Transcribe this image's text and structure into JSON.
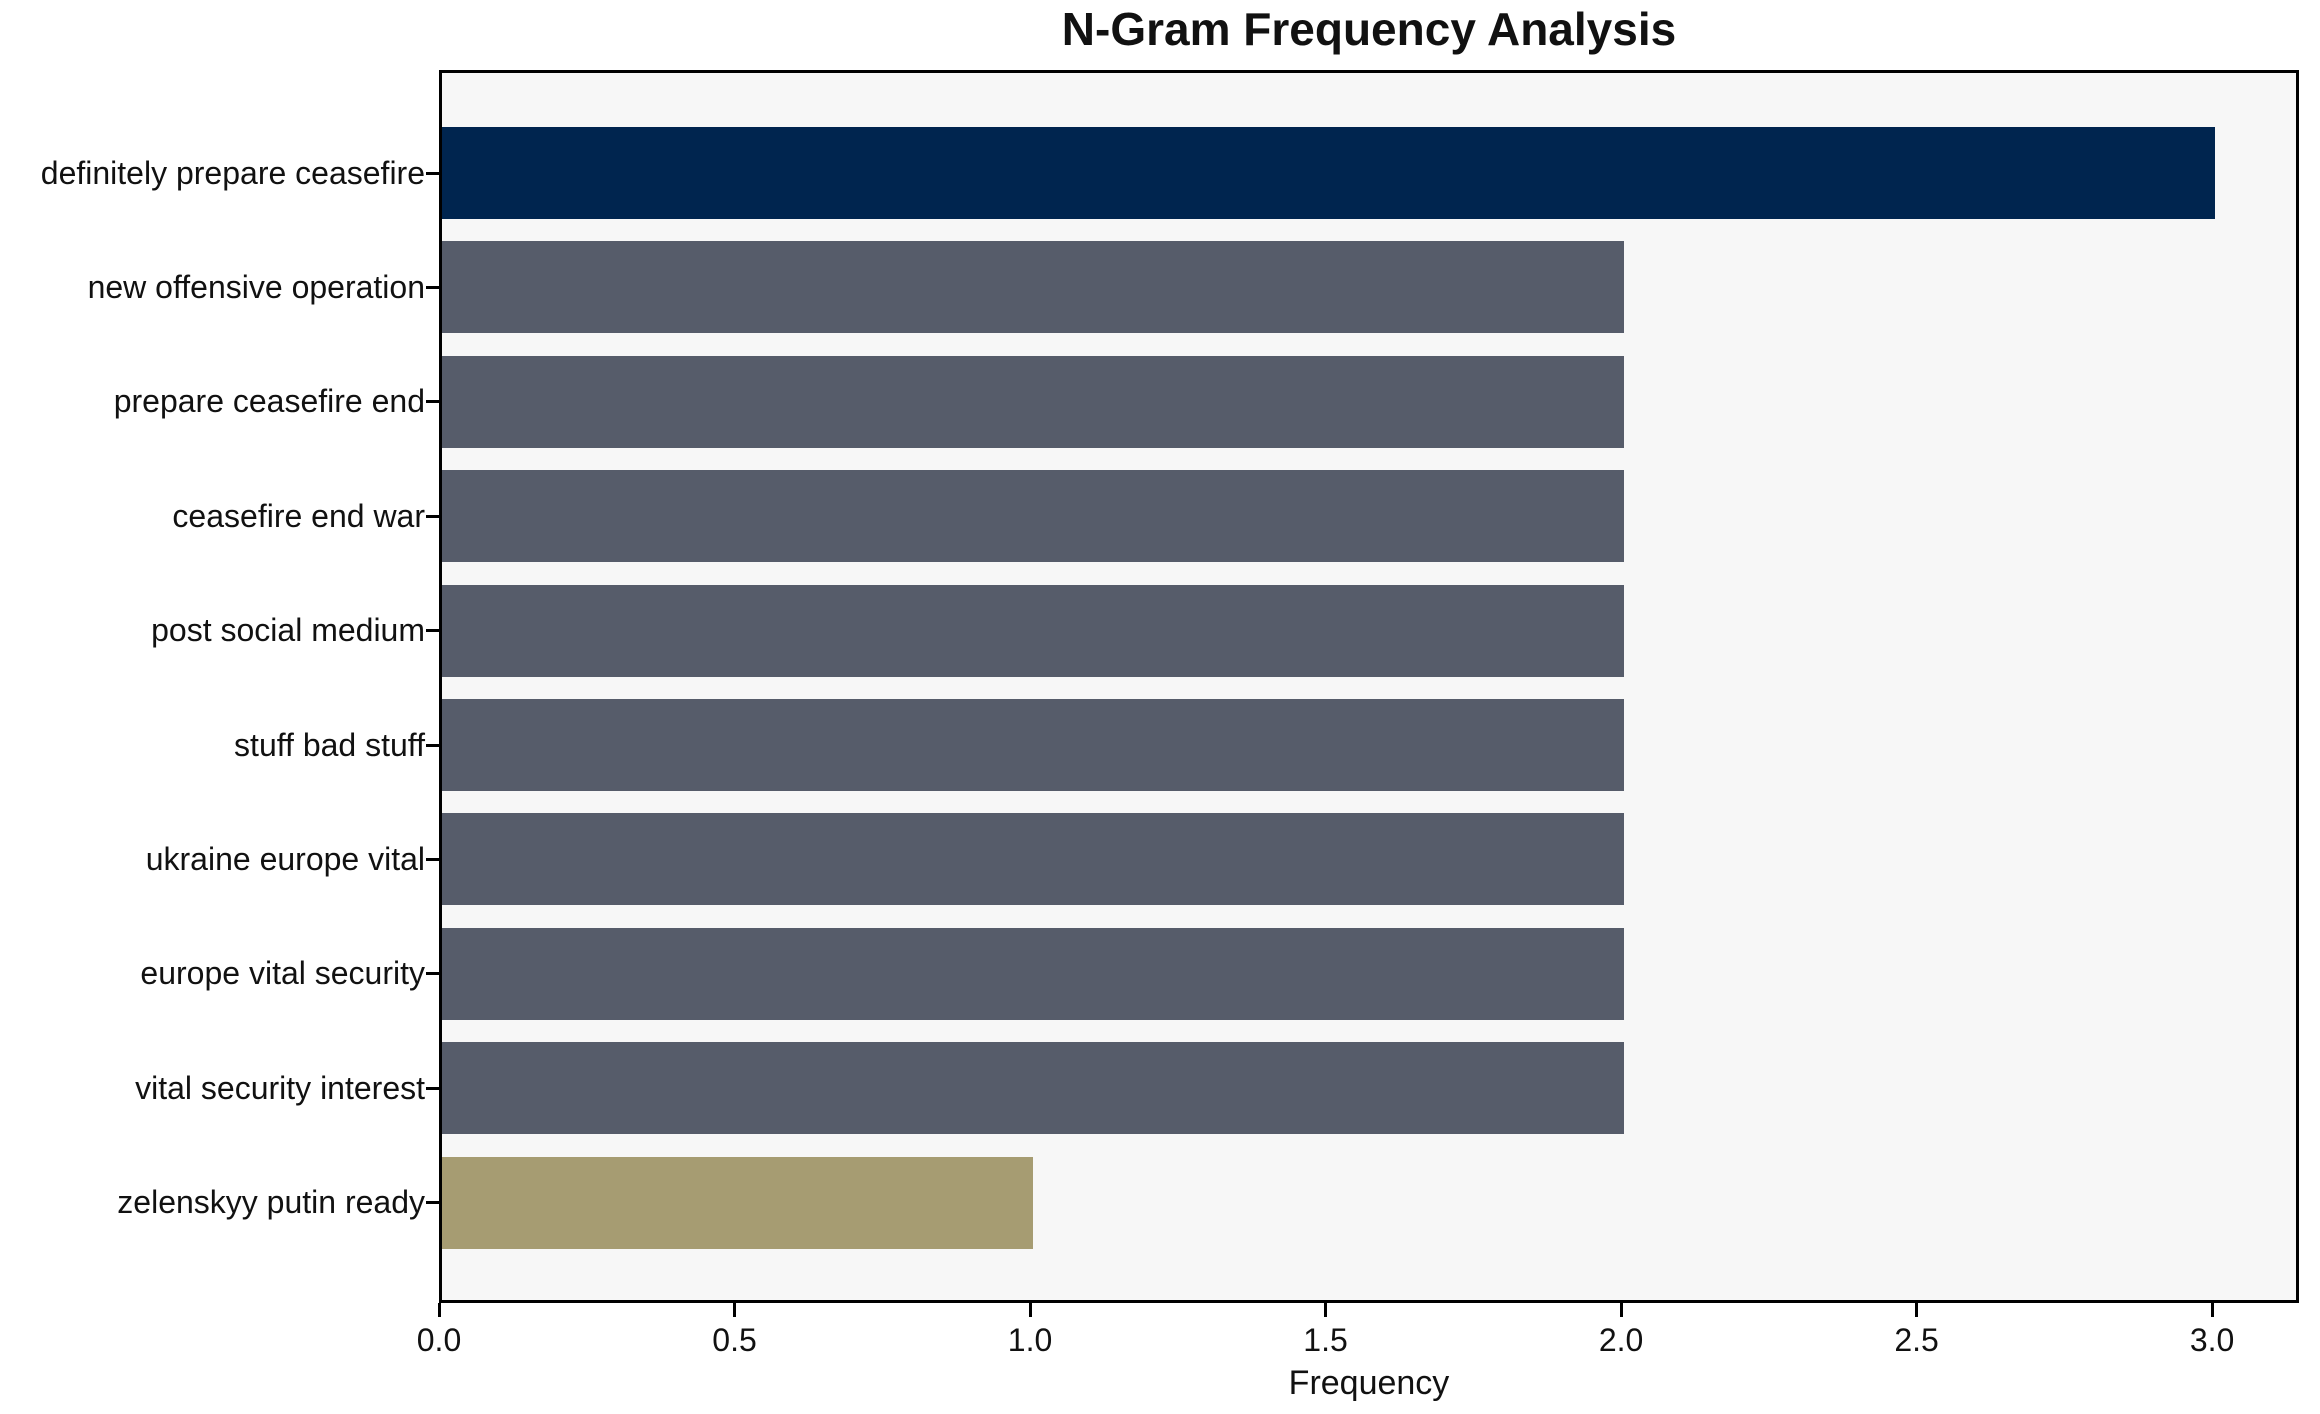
{
  "chart_data": {
    "type": "bar",
    "orientation": "horizontal",
    "title": "N-Gram Frequency Analysis",
    "xlabel": "Frequency",
    "ylabel": "",
    "categories": [
      "definitely prepare ceasefire",
      "new offensive operation",
      "prepare ceasefire end",
      "ceasefire end war",
      "post social medium",
      "stuff bad stuff",
      "ukraine europe vital",
      "europe vital security",
      "vital security interest",
      "zelenskyy putin ready"
    ],
    "values": [
      3,
      2,
      2,
      2,
      2,
      2,
      2,
      2,
      2,
      1
    ],
    "bar_colors": [
      "#00254f",
      "#565c6a",
      "#565c6a",
      "#565c6a",
      "#565c6a",
      "#565c6a",
      "#565c6a",
      "#565c6a",
      "#565c6a",
      "#a69c72"
    ],
    "xlim": [
      0,
      3.147
    ],
    "xtick_values": [
      0,
      0.5,
      1,
      1.5,
      2,
      2.5,
      3
    ],
    "xtick_labels": [
      "0.0",
      "0.5",
      "1.0",
      "1.5",
      "2.0",
      "2.5",
      "3.0"
    ],
    "grid": false,
    "legend": null,
    "colors": {
      "highlight": "#00254f",
      "default": "#565c6a",
      "lowlight": "#a69c72",
      "plot_background": "#f7f7f7",
      "spine": "#000000",
      "text": "#111111"
    }
  }
}
